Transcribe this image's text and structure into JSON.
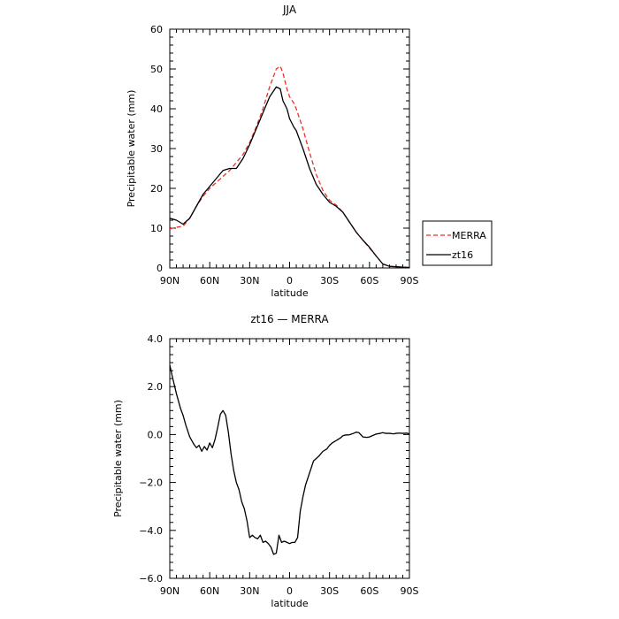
{
  "chart_data": [
    {
      "type": "line",
      "title": "JJA",
      "xlabel": "latitude",
      "ylabel": "Precipitable water (mm)",
      "xlim": [
        90,
        -90
      ],
      "ylim": [
        0,
        60
      ],
      "xticks": [
        90,
        60,
        30,
        0,
        -30,
        -60,
        -90
      ],
      "xtick_labels": [
        "90N",
        "60N",
        "30N",
        "0",
        "30S",
        "60S",
        "90S"
      ],
      "yticks": [
        0,
        10,
        20,
        30,
        40,
        50,
        60
      ],
      "ytick_labels": [
        "0",
        "10",
        "20",
        "30",
        "40",
        "50",
        "60"
      ],
      "grid": false,
      "legend_position": "right",
      "series": [
        {
          "name": "MERRA",
          "color": "#e8312a",
          "dash": "dashed",
          "x": [
            90,
            85,
            80,
            75,
            70,
            65,
            60,
            55,
            50,
            45,
            40,
            35,
            30,
            25,
            20,
            15,
            10,
            7,
            5,
            2,
            0,
            -3,
            -5,
            -10,
            -15,
            -20,
            -25,
            -30,
            -35,
            -40,
            -45,
            -50,
            -55,
            -60,
            -65,
            -70,
            -75,
            -80,
            -85,
            -90
          ],
          "y": [
            9.8,
            10.2,
            10.5,
            12.5,
            15.5,
            18.0,
            20.0,
            21.5,
            23.0,
            24.5,
            26.5,
            28.5,
            31.5,
            35.5,
            40.0,
            45.5,
            50.0,
            50.7,
            49.0,
            45.0,
            43.0,
            41.5,
            40.0,
            35.0,
            29.0,
            23.5,
            19.5,
            17.0,
            15.8,
            14.0,
            11.5,
            9.0,
            7.0,
            5.0,
            3.0,
            1.0,
            0.4,
            0.3,
            0.2,
            0.1
          ]
        },
        {
          "name": "zt16",
          "color": "#000000",
          "dash": "solid",
          "x": [
            90,
            85,
            80,
            75,
            70,
            65,
            60,
            55,
            50,
            45,
            40,
            35,
            30,
            25,
            20,
            15,
            10,
            7,
            5,
            2,
            0,
            -3,
            -5,
            -10,
            -15,
            -20,
            -25,
            -30,
            -35,
            -40,
            -45,
            -50,
            -55,
            -60,
            -65,
            -70,
            -75,
            -80,
            -85,
            -90
          ],
          "y": [
            12.5,
            12.0,
            11.0,
            12.5,
            15.5,
            18.5,
            20.5,
            22.5,
            24.5,
            25.0,
            25.0,
            27.5,
            31.0,
            35.0,
            39.0,
            43.0,
            45.5,
            45.0,
            42.0,
            40.0,
            37.5,
            35.5,
            34.5,
            30.0,
            25.0,
            21.0,
            18.5,
            16.5,
            15.5,
            14.0,
            11.5,
            9.0,
            7.0,
            5.2,
            3.0,
            1.0,
            0.4,
            0.3,
            0.2,
            0.1
          ]
        }
      ]
    },
    {
      "type": "line",
      "title": "zt16 — MERRA",
      "xlabel": "latitude",
      "ylabel": "Precipitable water (mm)",
      "xlim": [
        90,
        -90
      ],
      "ylim": [
        -6,
        4
      ],
      "xticks": [
        90,
        60,
        30,
        0,
        -30,
        -60,
        -90
      ],
      "xtick_labels": [
        "90N",
        "60N",
        "30N",
        "0",
        "30S",
        "60S",
        "90S"
      ],
      "yticks": [
        -6,
        -4,
        -2,
        0,
        2,
        4
      ],
      "ytick_labels": [
        "−6.0",
        "−4.0",
        "−2.0",
        "0.0",
        "2.0",
        "4.0"
      ],
      "grid": false,
      "series": [
        {
          "color": "#000000",
          "dash": "solid",
          "x": [
            90,
            88,
            85,
            82,
            80,
            78,
            75,
            72,
            70,
            68,
            66,
            64,
            62,
            60,
            58,
            56,
            54,
            52,
            50,
            48,
            46,
            44,
            42,
            40,
            38,
            36,
            34,
            32,
            30,
            28,
            26,
            24,
            22,
            20,
            18,
            16,
            14,
            12,
            10,
            8,
            6,
            4,
            2,
            0,
            -2,
            -4,
            -6,
            -8,
            -10,
            -12,
            -15,
            -18,
            -20,
            -22,
            -25,
            -28,
            -30,
            -32,
            -35,
            -38,
            -40,
            -42,
            -45,
            -48,
            -50,
            -52,
            -55,
            -58,
            -60,
            -62,
            -65,
            -68,
            -70,
            -72,
            -75,
            -78,
            -80,
            -82,
            -85,
            -88,
            -90
          ],
          "y": [
            2.9,
            2.4,
            1.7,
            1.1,
            0.8,
            0.4,
            -0.1,
            -0.4,
            -0.55,
            -0.45,
            -0.7,
            -0.5,
            -0.65,
            -0.35,
            -0.55,
            -0.2,
            0.3,
            0.85,
            1.0,
            0.8,
            0.1,
            -0.8,
            -1.5,
            -2.0,
            -2.3,
            -2.8,
            -3.1,
            -3.6,
            -4.3,
            -4.2,
            -4.3,
            -4.35,
            -4.2,
            -4.5,
            -4.45,
            -4.55,
            -4.7,
            -5.0,
            -4.95,
            -4.2,
            -4.5,
            -4.45,
            -4.5,
            -4.55,
            -4.5,
            -4.5,
            -4.3,
            -3.2,
            -2.6,
            -2.1,
            -1.6,
            -1.1,
            -1.0,
            -0.9,
            -0.7,
            -0.6,
            -0.45,
            -0.35,
            -0.25,
            -0.15,
            -0.05,
            -0.02,
            -0.01,
            0.05,
            0.1,
            0.08,
            -0.1,
            -0.12,
            -0.1,
            -0.05,
            0.02,
            0.05,
            0.08,
            0.05,
            0.05,
            0.03,
            0.05,
            0.06,
            0.05,
            0.06,
            0.03
          ]
        }
      ]
    }
  ]
}
